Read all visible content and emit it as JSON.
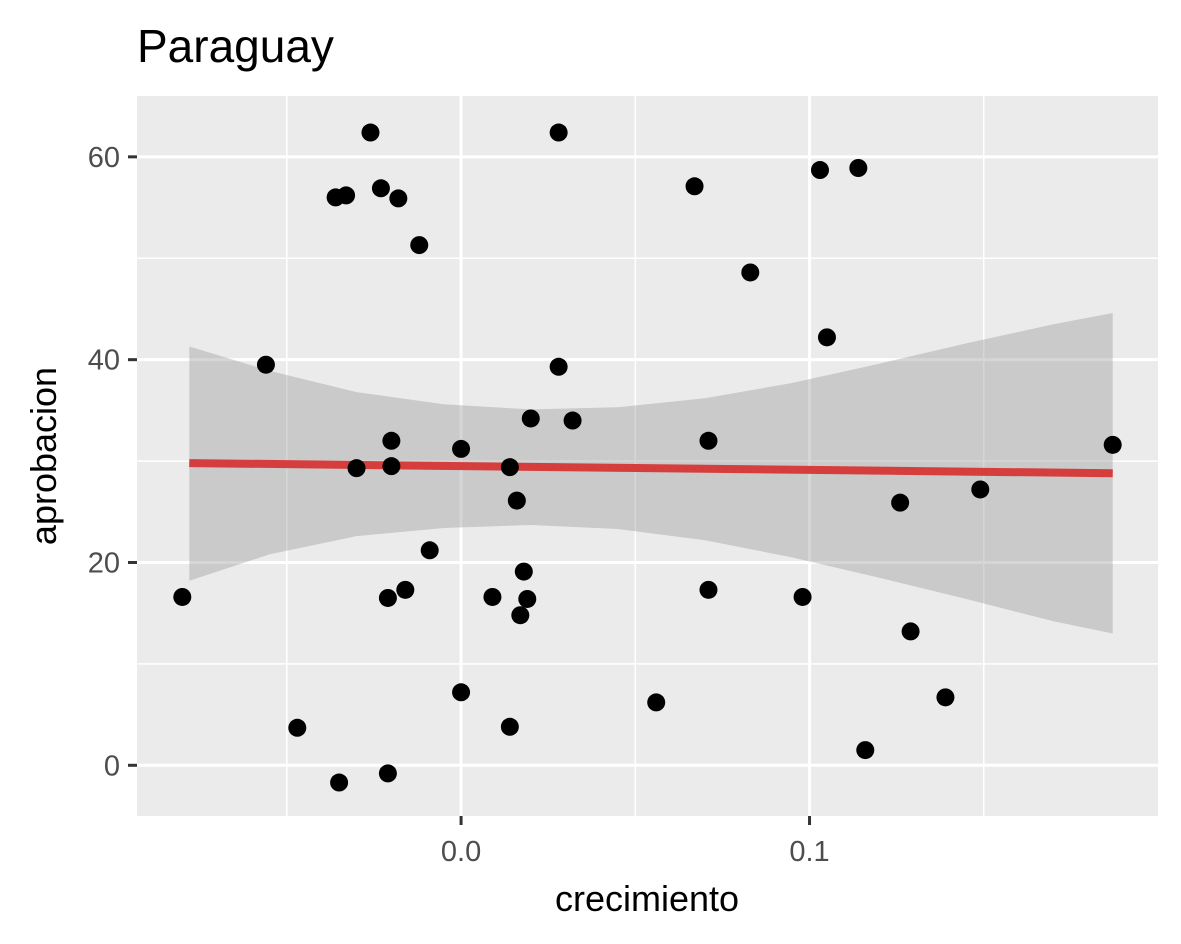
{
  "chart_data": {
    "type": "scatter",
    "title": "Paraguay",
    "xlabel": "crecimiento",
    "ylabel": "aprobacion",
    "xlim": [
      -0.093,
      0.2
    ],
    "ylim": [
      -5,
      66
    ],
    "x_major_ticks": [
      0.0,
      0.1
    ],
    "x_tick_labels": [
      "0.0",
      "0.1"
    ],
    "x_minor_ticks": [
      -0.05,
      0.05,
      0.15
    ],
    "y_major_ticks": [
      0,
      20,
      40,
      60
    ],
    "y_tick_labels": [
      "0",
      "20",
      "40",
      "60"
    ],
    "y_minor_ticks": [
      10,
      30,
      50
    ],
    "grid": true,
    "background": "#ebebeb",
    "point_color": "#000000",
    "points": [
      {
        "x": -0.08,
        "y": 16.6
      },
      {
        "x": -0.056,
        "y": 39.5
      },
      {
        "x": -0.047,
        "y": 3.7
      },
      {
        "x": -0.036,
        "y": 56.0
      },
      {
        "x": -0.035,
        "y": -1.7
      },
      {
        "x": -0.033,
        "y": 56.2
      },
      {
        "x": -0.03,
        "y": 29.3
      },
      {
        "x": -0.026,
        "y": 62.4
      },
      {
        "x": -0.023,
        "y": 56.9
      },
      {
        "x": -0.021,
        "y": -0.8
      },
      {
        "x": -0.021,
        "y": 16.5
      },
      {
        "x": -0.02,
        "y": 32.0
      },
      {
        "x": -0.02,
        "y": 29.5
      },
      {
        "x": -0.018,
        "y": 55.9
      },
      {
        "x": -0.016,
        "y": 17.3
      },
      {
        "x": -0.012,
        "y": 51.3
      },
      {
        "x": -0.009,
        "y": 21.2
      },
      {
        "x": 0.0,
        "y": 7.2
      },
      {
        "x": 0.0,
        "y": 31.2
      },
      {
        "x": 0.009,
        "y": 16.6
      },
      {
        "x": 0.014,
        "y": 3.8
      },
      {
        "x": 0.014,
        "y": 29.4
      },
      {
        "x": 0.016,
        "y": 26.1
      },
      {
        "x": 0.017,
        "y": 14.8
      },
      {
        "x": 0.018,
        "y": 19.1
      },
      {
        "x": 0.019,
        "y": 16.4
      },
      {
        "x": 0.02,
        "y": 34.2
      },
      {
        "x": 0.028,
        "y": 62.4
      },
      {
        "x": 0.028,
        "y": 39.3
      },
      {
        "x": 0.032,
        "y": 34.0
      },
      {
        "x": 0.056,
        "y": 6.2
      },
      {
        "x": 0.067,
        "y": 57.1
      },
      {
        "x": 0.071,
        "y": 17.3
      },
      {
        "x": 0.071,
        "y": 32.0
      },
      {
        "x": 0.083,
        "y": 48.6
      },
      {
        "x": 0.098,
        "y": 16.6
      },
      {
        "x": 0.103,
        "y": 58.7
      },
      {
        "x": 0.105,
        "y": 42.2
      },
      {
        "x": 0.114,
        "y": 58.9
      },
      {
        "x": 0.116,
        "y": 1.5
      },
      {
        "x": 0.126,
        "y": 25.9
      },
      {
        "x": 0.129,
        "y": 13.2
      },
      {
        "x": 0.139,
        "y": 6.7
      },
      {
        "x": 0.149,
        "y": 27.2
      },
      {
        "x": 0.187,
        "y": 31.6
      }
    ],
    "fit": {
      "color": "#ff0000",
      "band_color": "#999999",
      "line": [
        {
          "x": -0.078,
          "y": 29.8
        },
        {
          "x": 0.187,
          "y": 28.8
        }
      ],
      "band_upper": [
        {
          "x": -0.078,
          "y": 41.3
        },
        {
          "x": -0.055,
          "y": 38.9
        },
        {
          "x": -0.03,
          "y": 36.8
        },
        {
          "x": -0.005,
          "y": 35.6
        },
        {
          "x": 0.02,
          "y": 35.1
        },
        {
          "x": 0.045,
          "y": 35.3
        },
        {
          "x": 0.07,
          "y": 36.2
        },
        {
          "x": 0.095,
          "y": 37.7
        },
        {
          "x": 0.12,
          "y": 39.6
        },
        {
          "x": 0.145,
          "y": 41.6
        },
        {
          "x": 0.17,
          "y": 43.5
        },
        {
          "x": 0.187,
          "y": 44.6
        }
      ],
      "band_lower": [
        {
          "x": -0.078,
          "y": 18.2
        },
        {
          "x": -0.055,
          "y": 20.8
        },
        {
          "x": -0.03,
          "y": 22.6
        },
        {
          "x": -0.005,
          "y": 23.4
        },
        {
          "x": 0.02,
          "y": 23.7
        },
        {
          "x": 0.045,
          "y": 23.3
        },
        {
          "x": 0.07,
          "y": 22.2
        },
        {
          "x": 0.095,
          "y": 20.5
        },
        {
          "x": 0.12,
          "y": 18.5
        },
        {
          "x": 0.145,
          "y": 16.4
        },
        {
          "x": 0.17,
          "y": 14.2
        },
        {
          "x": 0.187,
          "y": 13.0
        }
      ]
    }
  }
}
